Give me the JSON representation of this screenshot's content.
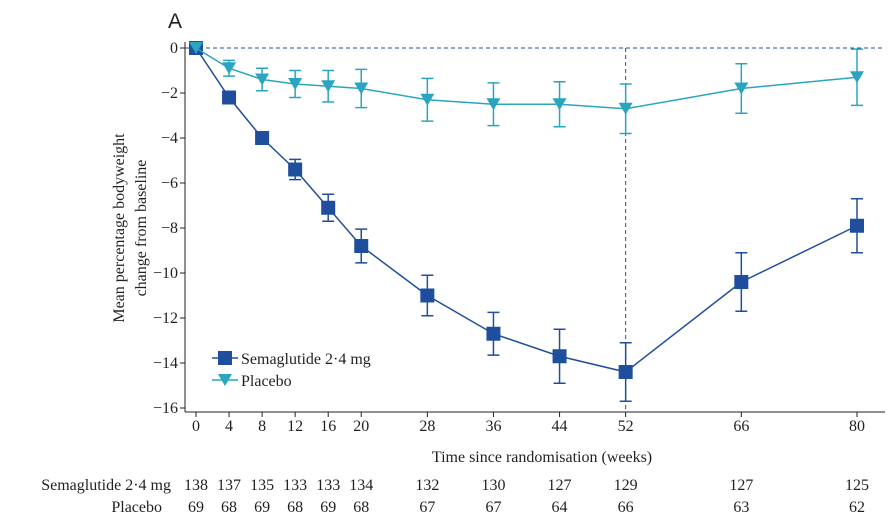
{
  "chart_data": {
    "type": "line",
    "panel_label": "A",
    "ylabel_lines": [
      "Mean percentage bodyweight",
      "change from baseline"
    ],
    "xlabel": "Time since randomisation (weeks)",
    "x_ticks": [
      0,
      4,
      8,
      12,
      16,
      20,
      28,
      36,
      44,
      52,
      66,
      80
    ],
    "x_tick_labels": [
      "0",
      "4",
      "8",
      "12",
      "16",
      "20",
      "28",
      "36",
      "44",
      "52",
      "66",
      "80"
    ],
    "y_ticks": [
      0,
      -2,
      -4,
      -6,
      -8,
      -10,
      -12,
      -14,
      -16
    ],
    "y_tick_labels": [
      "0",
      "−2",
      "−4",
      "−6",
      "−8",
      "−10",
      "−12",
      "−14",
      "−16"
    ],
    "xlim": [
      0,
      82
    ],
    "ylim": [
      -16,
      0
    ],
    "reference_lines": {
      "horizontal_y": 0,
      "vertical_x": 52
    },
    "series": [
      {
        "name": "Semaglutide 2·4 mg",
        "marker": "square",
        "color": "#1f4e9c",
        "x": [
          0,
          4,
          8,
          12,
          16,
          20,
          28,
          36,
          44,
          52,
          66,
          80
        ],
        "y": [
          0,
          -2.2,
          -4.0,
          -5.4,
          -7.1,
          -8.8,
          -11.0,
          -12.7,
          -13.7,
          -14.4,
          -10.4,
          -7.9
        ],
        "err": [
          0,
          0.15,
          0.25,
          0.45,
          0.6,
          0.75,
          0.9,
          0.95,
          1.2,
          1.3,
          1.3,
          1.2
        ]
      },
      {
        "name": "Placebo",
        "marker": "triangle-down",
        "color": "#2aa5bf",
        "x": [
          0,
          4,
          8,
          12,
          16,
          20,
          28,
          36,
          44,
          52,
          66,
          80
        ],
        "y": [
          0,
          -0.9,
          -1.4,
          -1.6,
          -1.7,
          -1.8,
          -2.3,
          -2.5,
          -2.5,
          -2.7,
          -1.8,
          -1.3
        ],
        "err": [
          0,
          0.35,
          0.5,
          0.6,
          0.7,
          0.85,
          0.95,
          0.95,
          1.0,
          1.1,
          1.1,
          1.25
        ]
      }
    ],
    "legend_location": "lower-left",
    "risk_table": {
      "rows": [
        {
          "label": "Semaglutide 2·4 mg",
          "values": [
            "138",
            "137",
            "135",
            "133",
            "133",
            "134",
            "132",
            "130",
            "127",
            "129",
            "127",
            "125"
          ]
        },
        {
          "label": "Placebo",
          "values": [
            "69",
            "68",
            "69",
            "68",
            "69",
            "68",
            "67",
            "67",
            "64",
            "66",
            "63",
            "62"
          ]
        }
      ]
    }
  }
}
